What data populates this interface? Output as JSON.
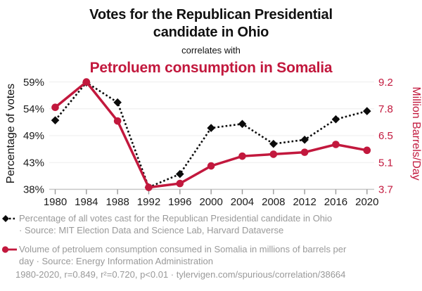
{
  "header": {
    "title": "Votes for the Republican Presidential\ncandidate in Ohio",
    "connector": "correlates with",
    "subtitle": "Petroluem consumption in Somalia"
  },
  "colors": {
    "accent": "#c2183d",
    "series_black": "#0b0b0b",
    "text_gray": "#999999",
    "text_dark": "#1a1a1a",
    "grid": "#ededed",
    "axis_line": "#c8c8c8",
    "tick": "#999999"
  },
  "chart_data": {
    "type": "line",
    "title": "Votes for the Republican Presidential candidate in Ohio correlates with Petroluem consumption in Somalia",
    "x": [
      1980,
      1984,
      1988,
      1992,
      1996,
      2000,
      2004,
      2008,
      2012,
      2016,
      2020
    ],
    "series": [
      {
        "name": "Percentage of all votes cast for the Republican Presidential candidate in Ohio",
        "axis": "left",
        "marker": "diamond",
        "line_style": "dotted",
        "color": "#0b0b0b",
        "values": [
          51.5,
          58.9,
          55.0,
          38.4,
          41.0,
          50.0,
          50.8,
          46.9,
          47.7,
          51.7,
          53.3
        ]
      },
      {
        "name": "Volume of petroluem consumption consumed in Somalia",
        "axis": "right",
        "marker": "circle",
        "line_style": "solid",
        "color": "#c2183d",
        "values": [
          7.9,
          9.2,
          7.2,
          3.8,
          4.0,
          4.9,
          5.4,
          5.5,
          5.6,
          6.0,
          5.7
        ]
      }
    ],
    "y_left": {
      "label": "Percentage of votes",
      "tick_labels": [
        "59%",
        "54%",
        "49%",
        "43%",
        "38%"
      ],
      "range": [
        38,
        59
      ]
    },
    "y_right": {
      "label": "Million Barrels/Day",
      "tick_labels": [
        "9.2",
        "7.8",
        "6.5",
        "5.1",
        "3.7"
      ],
      "range": [
        3.7,
        9.2
      ]
    },
    "grid": true,
    "legend_position": "bottom"
  },
  "legend": {
    "items": [
      {
        "label": "Percentage of all votes cast for the Republican Presidential candidate in Ohio\n· Source: MIT Election Data and Science Lab, Harvard Dataverse"
      },
      {
        "label": "Volume of petroluem consumption consumed in Somalia in millions of barrels per\nday · Source: Energy Information Administration"
      }
    ]
  },
  "footer": "1980-2020, r=0.849, r²=0.720, p<0.01 · tylervigen.com/spurious/correlation/38664"
}
